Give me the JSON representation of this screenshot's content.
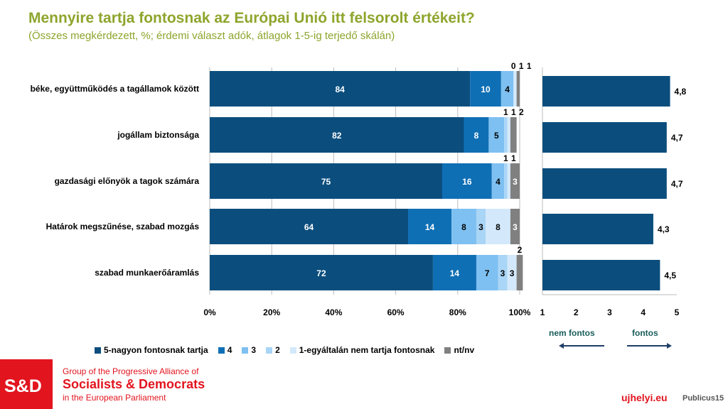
{
  "chart_data": [
    {
      "type": "bar",
      "stacked": true,
      "orientation": "horizontal",
      "title": "Mennyire tartja fontosnak az Európai Unió itt felsorolt értékeit?",
      "subtitle": "(Összes megkérdezett, %; érdemi választ adók, átlagok 1-5-ig terjedő skálán)",
      "categories": [
        "béke, együttműködés a tagállamok között",
        "jogállam biztonsága",
        "gazdasági előnyök a tagok számára",
        "Határok megszűnése, szabad mozgás",
        "szabad munkaerőáramlás"
      ],
      "xlim": [
        0,
        100
      ],
      "xticks": [
        "0%",
        "20%",
        "40%",
        "60%",
        "80%",
        "100%"
      ],
      "legend_position": "bottom",
      "grid": true,
      "series": [
        {
          "name": "5-nagyon fontosnak tartja",
          "color": "#0b4e7d",
          "values": [
            84,
            82,
            75,
            64,
            72
          ]
        },
        {
          "name": "4",
          "color": "#0f6fb5",
          "values": [
            10,
            8,
            16,
            14,
            14
          ]
        },
        {
          "name": "3",
          "color": "#7ec0f1",
          "values": [
            4,
            5,
            4,
            8,
            7
          ]
        },
        {
          "name": "2",
          "color": "#a9d5f6",
          "values": [
            0,
            1,
            1,
            3,
            3
          ]
        },
        {
          "name": "1-egyáltalán nem tartja fontosnak",
          "color": "#d3e9fb",
          "values": [
            1,
            1,
            1,
            8,
            3
          ]
        },
        {
          "name": "nt/nv",
          "color": "#808080",
          "values": [
            1,
            2,
            3,
            3,
            2
          ]
        }
      ]
    },
    {
      "type": "bar",
      "orientation": "horizontal",
      "xlim": [
        1,
        5
      ],
      "xticks": [
        "1",
        "2",
        "3",
        "4",
        "5"
      ],
      "values": [
        4.8,
        4.7,
        4.7,
        4.3,
        4.5
      ],
      "labels": [
        "4,8",
        "4,7",
        "4,7",
        "4,3",
        "4,5"
      ],
      "color": "#0b4e7d",
      "annotations": {
        "left": "nem fontos",
        "right": "fontos"
      }
    }
  ],
  "footer": {
    "logo": "S&D",
    "line1": "Group of the Progressive Alliance of",
    "line2": "Socialists & Democrats",
    "line3": "in the European Parliament",
    "ujhelyi": "ujhelyi.eu",
    "publicus": "Publicus15"
  }
}
